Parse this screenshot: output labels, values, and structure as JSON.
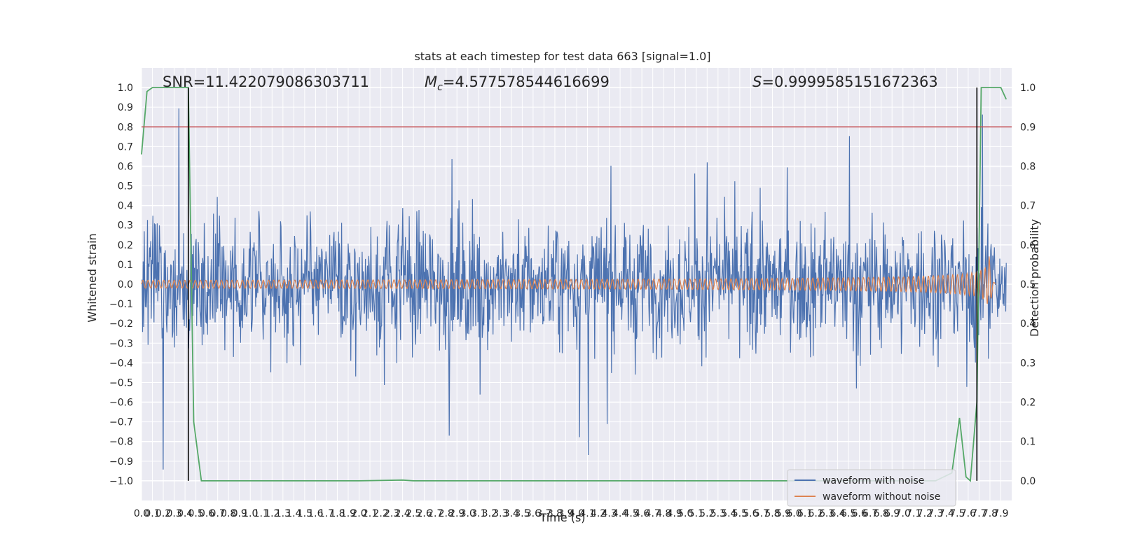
{
  "chart_data": {
    "type": "line",
    "title": "stats at each timestep for test data 663 [signal=1.0]",
    "xlabel": "Time (s)",
    "ylabel": "Whitened strain",
    "y2label": "Detection probability",
    "xlim": [
      0.0,
      8.0
    ],
    "ylim": [
      -1.1,
      1.1
    ],
    "y2lim": [
      -0.05,
      1.05
    ],
    "x_ticks": [
      "0.0",
      "0.1",
      "0.2",
      "0.3",
      "0.4",
      "0.5",
      "0.6",
      "0.7",
      "0.8",
      "0.9",
      "1.0",
      "1.1",
      "1.2",
      "1.3",
      "1.4",
      "1.5",
      "1.6",
      "1.7",
      "1.8",
      "1.9",
      "2.0",
      "2.1",
      "2.2",
      "2.3",
      "2.4",
      "2.5",
      "2.6",
      "2.7",
      "2.8",
      "2.9",
      "3.0",
      "3.1",
      "3.2",
      "3.3",
      "3.4",
      "3.5",
      "3.6",
      "3.7",
      "3.8",
      "3.9",
      "4.0",
      "4.1",
      "4.2",
      "4.3",
      "4.4",
      "4.5",
      "4.6",
      "4.7",
      "4.8",
      "4.9",
      "5.0",
      "5.1",
      "5.2",
      "5.3",
      "5.4",
      "5.5",
      "5.6",
      "5.7",
      "5.8",
      "5.9",
      "6.0",
      "6.1",
      "6.2",
      "6.3",
      "6.4",
      "6.5",
      "6.6",
      "6.7",
      "6.8",
      "6.9",
      "7.0",
      "7.1",
      "7.2",
      "7.3",
      "7.4",
      "7.5",
      "7.6",
      "7.7",
      "7.8",
      "7.9"
    ],
    "y_ticks": [
      "1.0",
      "0.9",
      "0.8",
      "0.7",
      "0.6",
      "0.5",
      "0.4",
      "0.3",
      "0.2",
      "0.1",
      "0.0",
      "−0.1",
      "−0.2",
      "−0.3",
      "−0.4",
      "−0.5",
      "−0.6",
      "−0.7",
      "−0.8",
      "−0.9",
      "−1.0"
    ],
    "y2_ticks": [
      "1.0",
      "0.9",
      "0.8",
      "0.7",
      "0.6",
      "0.5",
      "0.4",
      "0.3",
      "0.2",
      "0.1",
      "0.0"
    ],
    "annotations": {
      "snr": "SNR=11.422079086303711",
      "mc_symbol": "M",
      "mc_sub": "c",
      "mc_value": "=4.577578544616699",
      "s_symbol": "S",
      "s_value": "=0.9999585151672363"
    },
    "threshold": {
      "y": 0.8,
      "color": "#c44e52"
    },
    "vlines": [
      0.43,
      7.68
    ],
    "series": [
      {
        "name": "waveform with noise",
        "color": "#4c72b0",
        "description": "whitened noisy strain, approx amplitude range -1.0 to 1.0",
        "amplitude_range": [
          -0.99,
          1.0
        ]
      },
      {
        "name": "waveform without noise",
        "color": "#dd8452",
        "description": "chirp signal growing from about 0.02 amplitude to peak 0.2 near 7.8 s",
        "amplitude_start": 0.02,
        "amplitude_peak": 0.2,
        "merger_time": 7.8
      },
      {
        "name": "detection probability",
        "color": "#55a868",
        "axis": "right",
        "x": [
          0.0,
          0.05,
          0.1,
          0.15,
          0.2,
          0.3,
          0.35,
          0.43,
          0.48,
          0.55,
          0.6,
          0.7,
          1.0,
          2.0,
          2.4,
          2.5,
          3.0,
          4.0,
          5.0,
          6.0,
          7.0,
          7.3,
          7.45,
          7.52,
          7.58,
          7.62,
          7.68,
          7.72,
          7.75,
          7.8,
          7.85,
          7.9,
          7.95
        ],
        "y": [
          0.83,
          0.99,
          1.0,
          1.0,
          1.0,
          1.0,
          1.0,
          1.0,
          0.15,
          0.0,
          0.0,
          0.0,
          0.0,
          0.0,
          0.002,
          0.0,
          0.0,
          0.0,
          0.0,
          0.0,
          0.0,
          0.0,
          0.02,
          0.16,
          0.01,
          0.0,
          0.2,
          1.0,
          1.0,
          1.0,
          1.0,
          1.0,
          0.97
        ]
      }
    ],
    "legend": {
      "position": "lower-right",
      "entries": [
        "waveform with noise",
        "waveform without noise"
      ]
    }
  }
}
